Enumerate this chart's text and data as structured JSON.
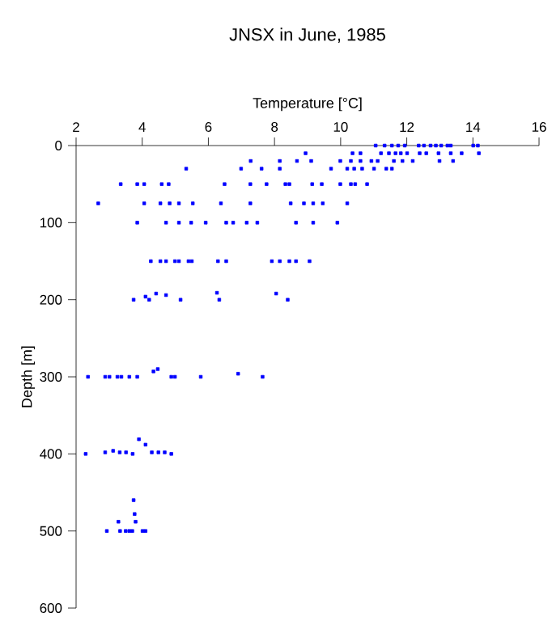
{
  "chart_data": {
    "type": "scatter",
    "title": "JNSX in June, 1985",
    "xlabel": "Temperature [°C]",
    "ylabel": "Depth [m]",
    "xlim": [
      2,
      16
    ],
    "xticks": [
      2,
      4,
      6,
      8,
      10,
      12,
      14,
      16
    ],
    "ylim": [
      600,
      0
    ],
    "yticks": [
      0,
      100,
      200,
      300,
      400,
      500,
      600
    ],
    "color": "#0000ff",
    "marker": "square",
    "x": [
      11.06,
      11.33,
      11.55,
      11.74,
      11.94,
      12.36,
      12.52,
      12.72,
      12.88,
      13.04,
      13.23,
      13.33,
      14.01,
      14.15,
      8.94,
      10.36,
      10.6,
      11.22,
      11.46,
      11.66,
      11.82,
      12.01,
      12.39,
      12.59,
      12.96,
      13.33,
      13.66,
      14.18,
      7.28,
      8.16,
      8.68,
      9.11,
      9.99,
      10.31,
      10.6,
      10.93,
      11.12,
      11.61,
      11.87,
      12.18,
      12.99,
      13.4,
      5.33,
      6.99,
      7.61,
      8.16,
      9.71,
      10.2,
      10.41,
      10.65,
      11.01,
      11.38,
      11.55,
      3.35,
      3.85,
      4.06,
      4.59,
      4.8,
      6.49,
      7.27,
      7.76,
      8.33,
      8.45,
      9.14,
      9.43,
      9.99,
      10.31,
      10.44,
      10.8,
      2.67,
      4.06,
      4.55,
      4.83,
      5.11,
      5.53,
      6.38,
      7.27,
      8.49,
      8.89,
      9.17,
      9.46,
      10.2,
      3.85,
      4.72,
      5.11,
      5.48,
      5.92,
      6.54,
      6.75,
      7.16,
      7.48,
      8.65,
      9.17,
      9.9,
      4.26,
      4.55,
      4.72,
      4.99,
      5.11,
      5.4,
      5.5,
      6.29,
      6.54,
      7.92,
      8.16,
      8.45,
      8.65,
      9.06,
      3.74,
      4.1,
      4.21,
      4.42,
      4.72,
      5.16,
      6.26,
      6.33,
      8.05,
      8.4,
      2.36,
      2.88,
      3.01,
      3.25,
      3.37,
      3.61,
      3.85,
      4.34,
      4.47,
      4.88,
      4.99,
      5.77,
      6.9,
      7.64,
      2.29,
      2.88,
      3.12,
      3.32,
      3.51,
      3.71,
      3.9,
      4.1,
      4.29,
      4.49,
      4.68,
      4.88,
      3.74,
      3.77,
      3.28,
      3.8,
      2.93,
      3.33,
      3.5,
      3.61,
      3.7,
      4.01,
      4.1
    ],
    "values": [
      0,
      0,
      0,
      0,
      0,
      0,
      0,
      0,
      0,
      0,
      0,
      0,
      0,
      0,
      10,
      10,
      10,
      10,
      10,
      10,
      10,
      10,
      10,
      10,
      10,
      10,
      10,
      10,
      20,
      20,
      20,
      20,
      20,
      20,
      20,
      20,
      20,
      20,
      20,
      20,
      20,
      20,
      30,
      30,
      30,
      30,
      30,
      30,
      30,
      30,
      30,
      30,
      30,
      50,
      50,
      50,
      50,
      50,
      50,
      50,
      50,
      50,
      50,
      50,
      50,
      50,
      50,
      50,
      50,
      75,
      75,
      75,
      75,
      75,
      75,
      75,
      75,
      75,
      75,
      75,
      75,
      75,
      100,
      100,
      100,
      100,
      100,
      100,
      100,
      100,
      100,
      100,
      100,
      100,
      150,
      150,
      150,
      150,
      150,
      150,
      150,
      150,
      150,
      150,
      150,
      150,
      150,
      150,
      200,
      196,
      200,
      192,
      194,
      200,
      191,
      200,
      192,
      200,
      300,
      300,
      300,
      300,
      300,
      300,
      300,
      293,
      290,
      300,
      300,
      300,
      296,
      300,
      400,
      398,
      396,
      398,
      398,
      400,
      381,
      388,
      398,
      398,
      398,
      400,
      460,
      478,
      488,
      488,
      500,
      500,
      500,
      500,
      500,
      500,
      500
    ]
  }
}
